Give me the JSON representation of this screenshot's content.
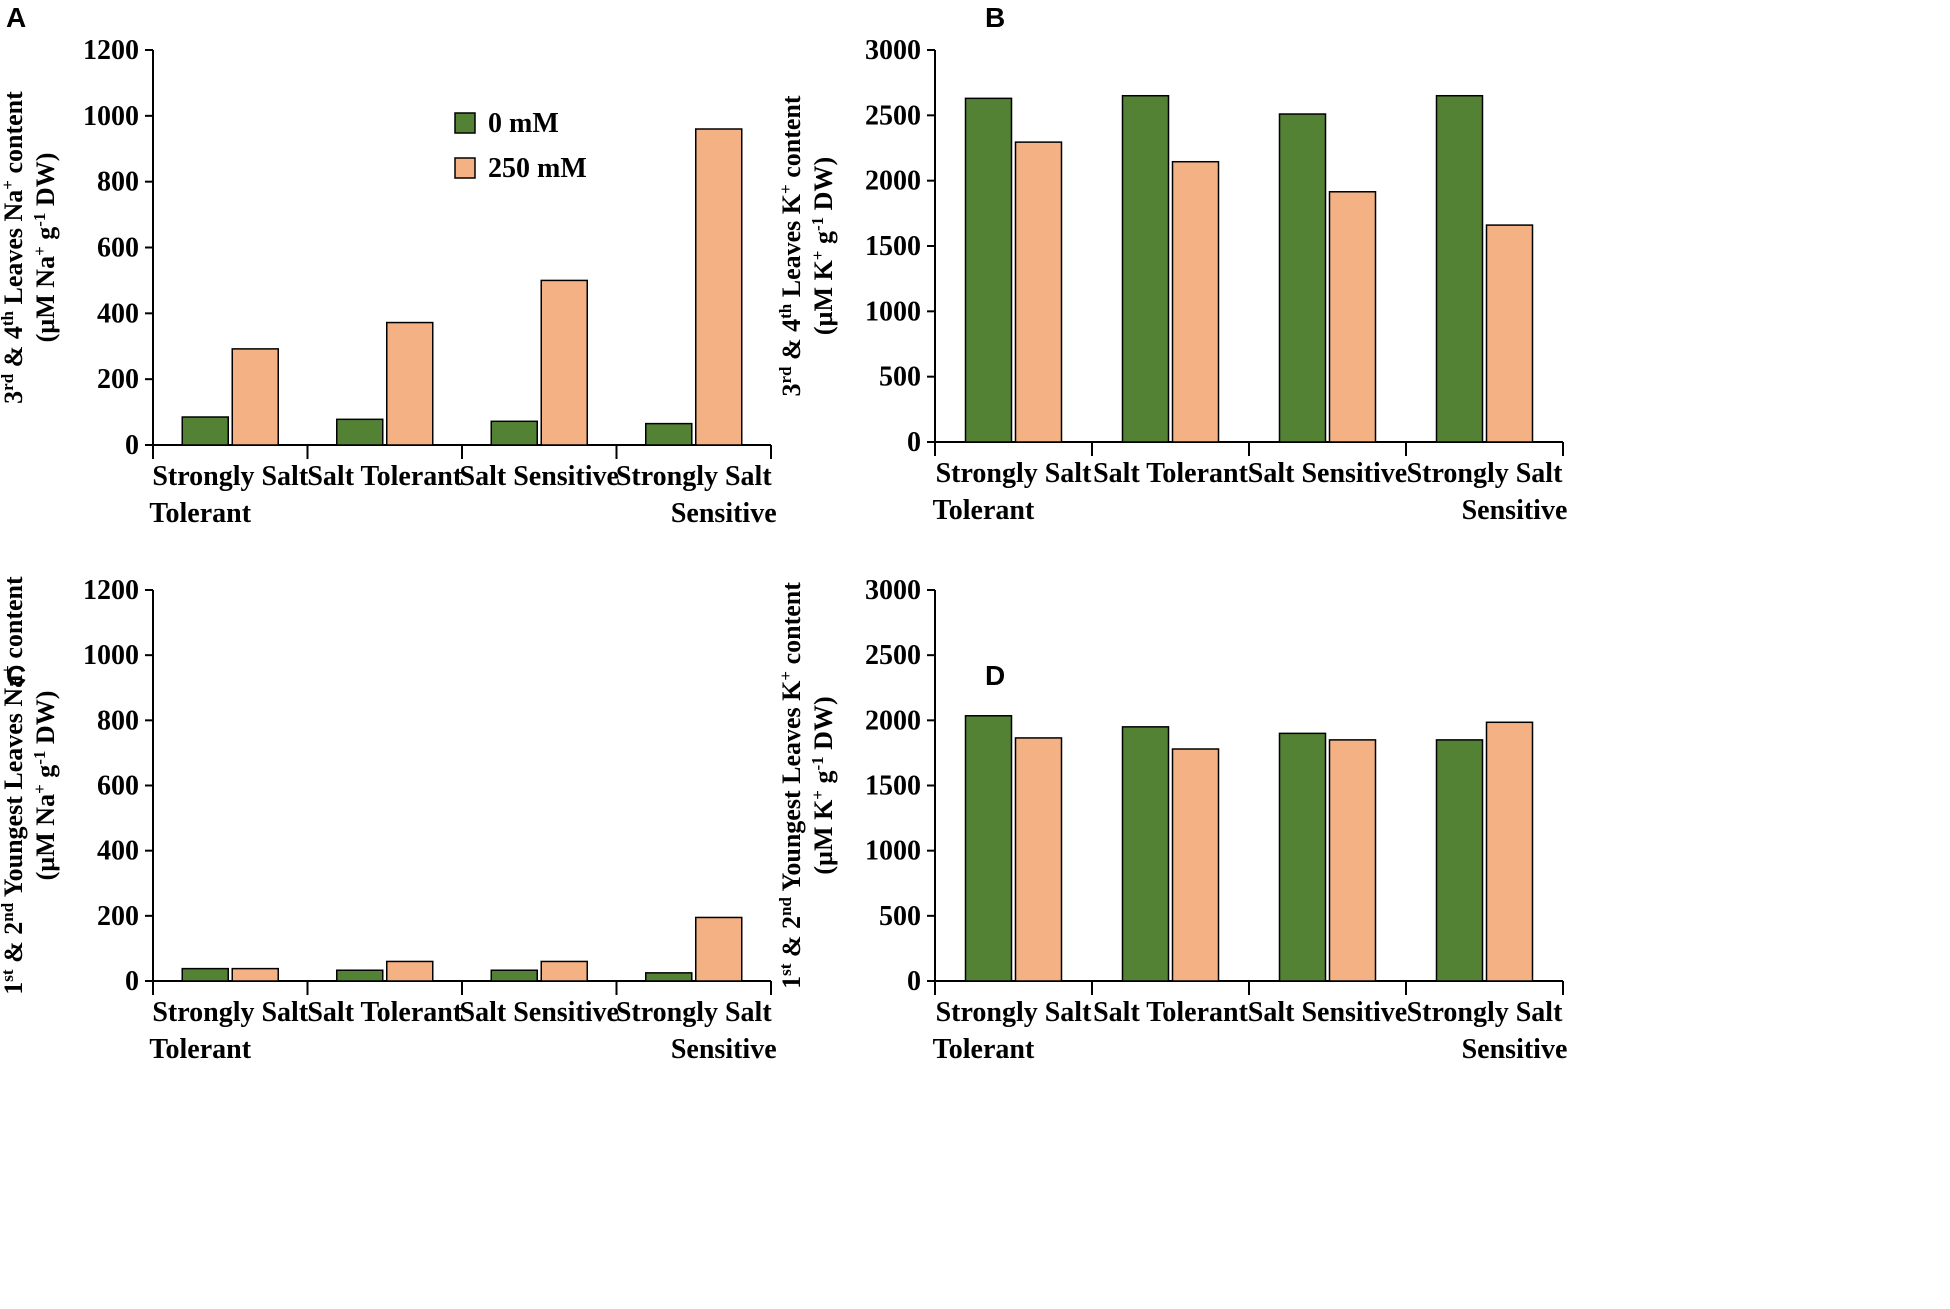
{
  "legend": {
    "items": [
      {
        "label": "0 mM",
        "color": "#548235"
      },
      {
        "label": "250 mM",
        "color": "#F4B183"
      }
    ]
  },
  "chart_data": [
    {
      "panel": "A",
      "type": "bar",
      "categories": [
        [
          "Strongly Salt",
          "Tolerant"
        ],
        [
          "Salt Tolerant"
        ],
        [
          "Salt Sensitive"
        ],
        [
          "Strongly Salt",
          "Sensitive"
        ]
      ],
      "series": [
        {
          "name": "0 mM",
          "values": [
            85,
            78,
            72,
            65
          ]
        },
        {
          "name": "250 mM",
          "values": [
            292,
            372,
            500,
            960
          ]
        }
      ],
      "ylabel_line1": "3rd & 4th Leaves Na+ content",
      "ylabel_line2": "(µM Na+ g-1 DW)",
      "yticks": [
        0,
        200,
        400,
        600,
        800,
        1000,
        1200
      ],
      "ylim": [
        0,
        1200
      ]
    },
    {
      "panel": "B",
      "type": "bar",
      "categories": [
        [
          "Strongly Salt",
          "Tolerant"
        ],
        [
          "Salt Tolerant"
        ],
        [
          "Salt Sensitive"
        ],
        [
          "Strongly Salt",
          "Sensitive"
        ]
      ],
      "series": [
        {
          "name": "0 mM",
          "values": [
            2630,
            2650,
            2510,
            2650
          ]
        },
        {
          "name": "250 mM",
          "values": [
            2295,
            2145,
            1915,
            1660
          ]
        }
      ],
      "ylabel_line1": "3rd & 4th Leaves K+ content",
      "ylabel_line2": "(µM K+ g-1 DW)",
      "yticks": [
        0,
        500,
        1000,
        1500,
        2000,
        2500,
        3000
      ],
      "ylim": [
        0,
        3000
      ]
    },
    {
      "panel": "C",
      "type": "bar",
      "categories": [
        [
          "Strongly Salt",
          "Tolerant"
        ],
        [
          "Salt Tolerant"
        ],
        [
          "Salt Sensitive"
        ],
        [
          "Strongly Salt",
          "Sensitive"
        ]
      ],
      "series": [
        {
          "name": "0 mM",
          "values": [
            38,
            33,
            33,
            25
          ]
        },
        {
          "name": "250 mM",
          "values": [
            38,
            60,
            60,
            195
          ]
        }
      ],
      "ylabel_line1": "1st & 2nd Youngest Leaves Na+ content",
      "ylabel_line2": "(µM Na+ g-1 DW)",
      "yticks": [
        0,
        200,
        400,
        600,
        800,
        1000,
        1200
      ],
      "ylim": [
        0,
        1200
      ]
    },
    {
      "panel": "D",
      "type": "bar",
      "categories": [
        [
          "Strongly Salt",
          "Tolerant"
        ],
        [
          "Salt Tolerant"
        ],
        [
          "Salt Sensitive"
        ],
        [
          "Strongly Salt",
          "Sensitive"
        ]
      ],
      "series": [
        {
          "name": "0 mM",
          "values": [
            2035,
            1950,
            1900,
            1850
          ]
        },
        {
          "name": "250 mM",
          "values": [
            1865,
            1780,
            1850,
            1985
          ]
        }
      ],
      "ylabel_line1": "1st & 2nd Youngest Leaves K+ content",
      "ylabel_line2": "(µM K+ g-1 DW)",
      "yticks": [
        0,
        500,
        1000,
        1500,
        2000,
        2500,
        3000
      ],
      "ylim": [
        0,
        3000
      ]
    }
  ]
}
